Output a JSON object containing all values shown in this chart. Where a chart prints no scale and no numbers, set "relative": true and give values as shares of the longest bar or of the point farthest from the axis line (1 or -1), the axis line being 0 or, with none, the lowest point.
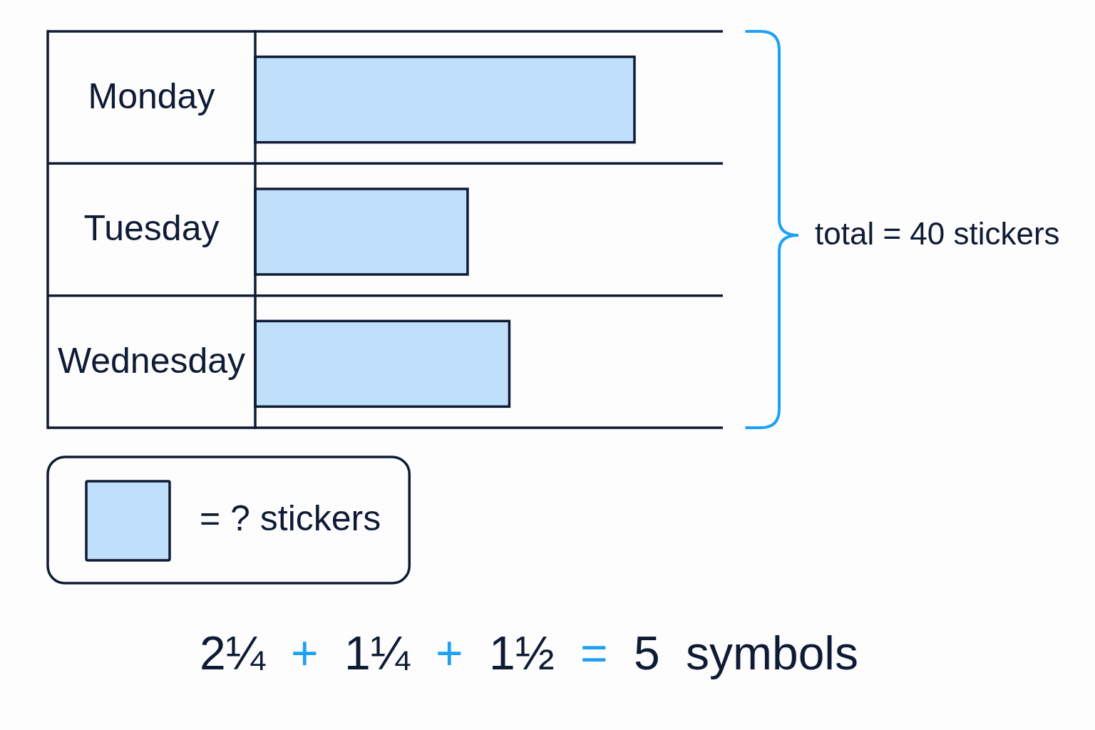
{
  "chart_data": {
    "type": "bar",
    "orientation": "horizontal",
    "relative": true,
    "categories": [
      "Monday",
      "Tuesday",
      "Wednesday"
    ],
    "series": [
      {
        "name": "= ? stickers",
        "color": "#bfdffa",
        "values": [
          1,
          0.56,
          0.67
        ]
      }
    ],
    "legend": "bottom left",
    "annotations": [
      "total = 40 stickers",
      "2¼ + 1¼ + 1½ = 5 symbols"
    ]
  }
}
